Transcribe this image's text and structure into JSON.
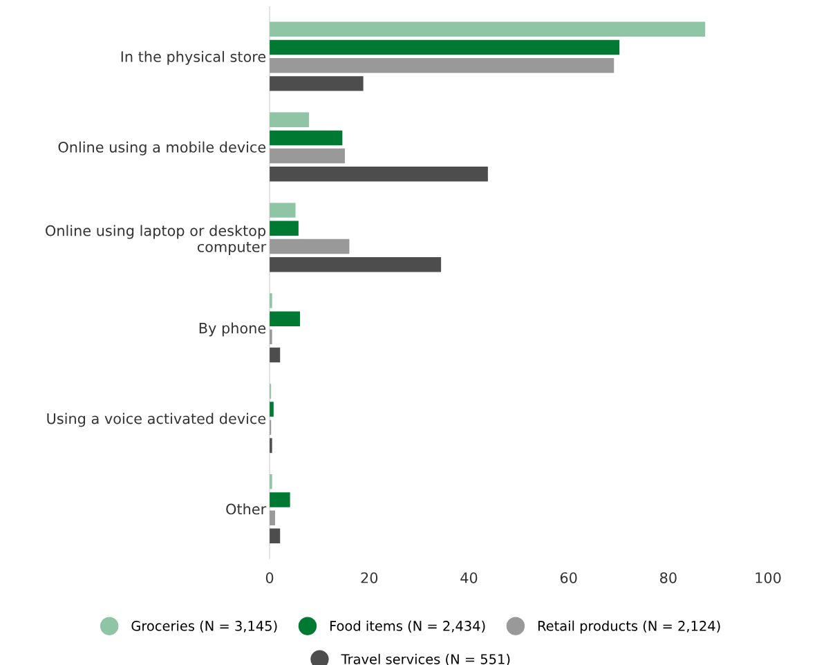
{
  "chart_data": {
    "type": "bar",
    "orientation": "horizontal",
    "categories": [
      "In the physical store",
      "Online using a mobile device",
      "Online using laptop or desktop computer",
      "By phone",
      "Using a voice activated device",
      "Other"
    ],
    "series": [
      {
        "name": "Groceries (N = 3,145)",
        "color": "#8fc4a4",
        "values": [
          87.4,
          7.9,
          5.2,
          0.5,
          0.3,
          0.5
        ]
      },
      {
        "name": "Food items (N = 2,434)",
        "color": "#007a33",
        "values": [
          70.2,
          14.6,
          5.8,
          6.1,
          0.8,
          4.1
        ]
      },
      {
        "name": "Retail products (N = 2,124)",
        "color": "#999999",
        "values": [
          69.1,
          15.1,
          16.0,
          0.5,
          0.3,
          1.1
        ]
      },
      {
        "name": "Travel services (N = 551)",
        "color": "#4d4d4d",
        "values": [
          18.8,
          43.8,
          34.4,
          2.1,
          0.5,
          2.1
        ]
      }
    ],
    "xlim": [
      0,
      100
    ],
    "xticks": [
      0,
      20,
      40,
      60,
      80,
      100
    ],
    "grid": false,
    "legend": "bottom"
  }
}
